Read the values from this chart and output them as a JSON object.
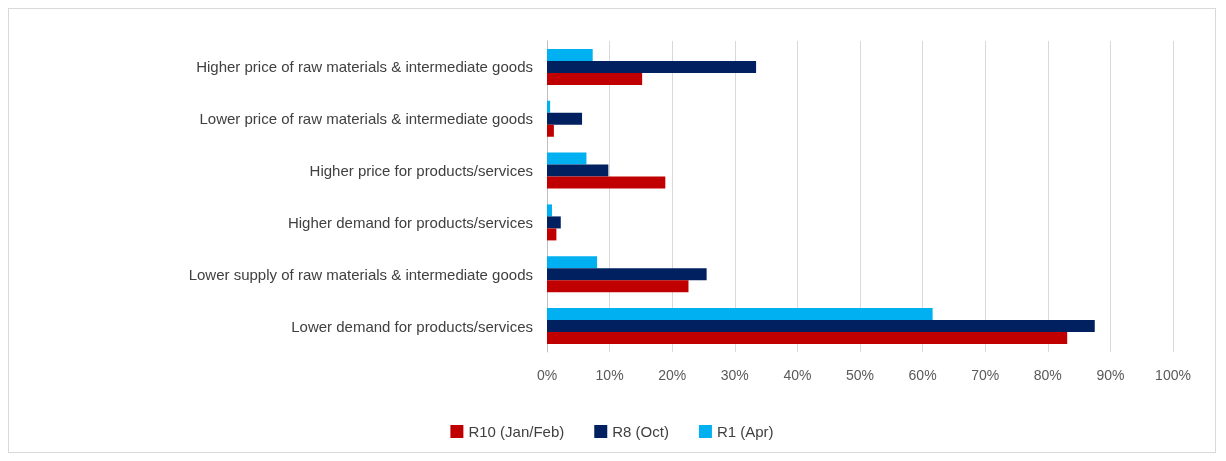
{
  "chart_data": {
    "type": "bar",
    "orientation": "horizontal",
    "categories": [
      "Higher price of raw materials & intermediate goods",
      "Lower price of raw materials & intermediate goods",
      "Higher price for products/services",
      "Higher demand for products/services",
      "Lower supply of raw materials & intermediate goods",
      "Lower demand for products/services"
    ],
    "series": [
      {
        "name": "R10 (Jan/Feb)",
        "color": "#c00000",
        "values": [
          15.2,
          1.1,
          18.9,
          1.5,
          22.6,
          83.1
        ]
      },
      {
        "name": "R8 (Oct)",
        "color": "#002060",
        "values": [
          33.4,
          5.6,
          9.8,
          2.2,
          25.5,
          87.5
        ]
      },
      {
        "name": "R1 (Apr)",
        "color": "#00b0f0",
        "values": [
          7.3,
          0.5,
          6.3,
          0.8,
          8.0,
          61.6
        ]
      }
    ],
    "xlim": [
      0,
      100
    ],
    "xticks": [
      {
        "value": 0,
        "label": "0%"
      },
      {
        "value": 10,
        "label": "10%"
      },
      {
        "value": 20,
        "label": "20%"
      },
      {
        "value": 30,
        "label": "30%"
      },
      {
        "value": 40,
        "label": "40%"
      },
      {
        "value": 50,
        "label": "50%"
      },
      {
        "value": 60,
        "label": "60%"
      },
      {
        "value": 70,
        "label": "70%"
      },
      {
        "value": 80,
        "label": "80%"
      },
      {
        "value": 90,
        "label": "90%"
      },
      {
        "value": 100,
        "label": "100%"
      }
    ],
    "grid": "x",
    "legend": "bottom"
  }
}
